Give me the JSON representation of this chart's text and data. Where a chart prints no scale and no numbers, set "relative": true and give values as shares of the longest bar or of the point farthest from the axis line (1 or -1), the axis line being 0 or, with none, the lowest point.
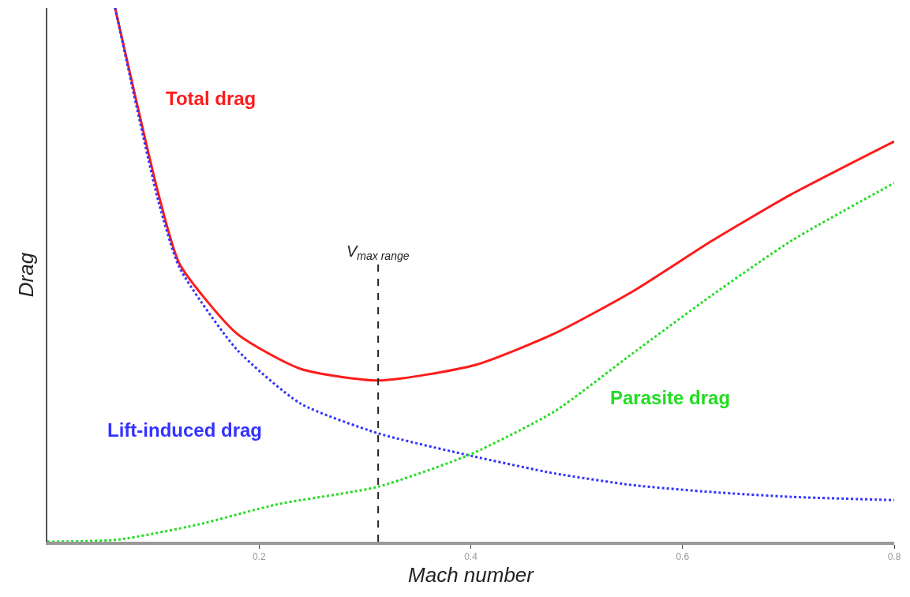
{
  "chart_data": {
    "type": "line",
    "relative": true,
    "xlabel": "Mach number",
    "ylabel": "Drag",
    "xlim": [
      0,
      0.8
    ],
    "xticks": [
      0.2,
      0.4,
      0.6,
      0.8
    ],
    "legend": false,
    "marker": "none",
    "series": [
      {
        "name": "Total drag",
        "color": "#ff1a1a",
        "line_style": "solid",
        "x": [
          0.064,
          0.105,
          0.125,
          0.179,
          0.239,
          0.3125,
          0.404,
          0.479,
          0.553,
          0.628,
          0.703,
          0.8
        ],
        "values": [
          1.0,
          0.651,
          0.52,
          0.39,
          0.324,
          0.302,
          0.331,
          0.39,
          0.469,
          0.564,
          0.651,
          0.75
        ]
      },
      {
        "name": "Lift-induced drag",
        "color": "#3333ff",
        "line_style": "dotted",
        "x": [
          0.064,
          0.105,
          0.125,
          0.179,
          0.239,
          0.3125,
          0.4,
          0.479,
          0.553,
          0.628,
          0.703,
          0.8
        ],
        "values": [
          1.0,
          0.637,
          0.513,
          0.36,
          0.259,
          0.203,
          0.161,
          0.128,
          0.106,
          0.093,
          0.084,
          0.078
        ]
      },
      {
        "name": "Parasite drag",
        "color": "#22dd22",
        "line_style": "dotted",
        "x": [
          0,
          0.067,
          0.142,
          0.217,
          0.3125,
          0.4,
          0.479,
          0.553,
          0.628,
          0.703,
          0.8
        ],
        "values": [
          0,
          0.004,
          0.032,
          0.07,
          0.103,
          0.164,
          0.244,
          0.353,
          0.462,
          0.564,
          0.672
        ]
      }
    ],
    "ref_lines": [
      {
        "axis": "x",
        "value": 0.3125,
        "label": "V$_{max range}$",
        "color": "#222222",
        "line_style": "dashed"
      }
    ]
  }
}
